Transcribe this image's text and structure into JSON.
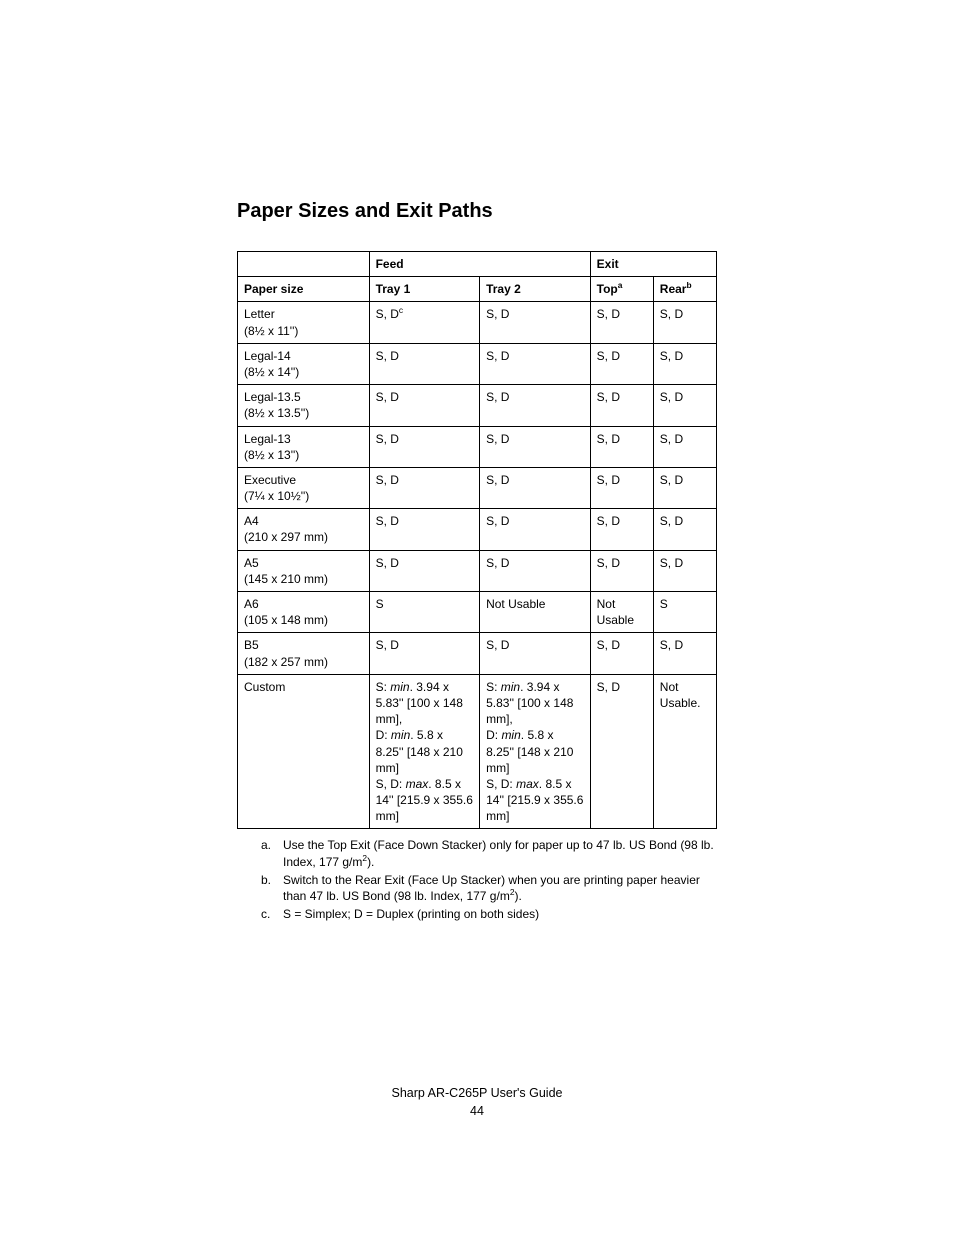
{
  "title": "Paper Sizes and Exit Paths",
  "table": {
    "header_top": {
      "empty": "",
      "feed": "Feed",
      "exit": "Exit"
    },
    "header_sub": {
      "paper_size": "Paper size",
      "tray1": "Tray 1",
      "tray2": "Tray 2",
      "top": "Top",
      "top_sup": "a",
      "rear": "Rear",
      "rear_sup": "b"
    },
    "rows": [
      {
        "size_line1": "Letter",
        "size_line2": "(8½ x 11'')",
        "tray1_pre": "S, D",
        "tray1_sup": "c",
        "tray1_post": "",
        "tray2": "S, D",
        "top": "S, D",
        "rear": "S, D"
      },
      {
        "size_line1": "Legal-14",
        "size_line2": "(8½ x 14'')",
        "tray1": "S, D",
        "tray2": "S, D",
        "top": "S, D",
        "rear": "S, D"
      },
      {
        "size_line1": "Legal-13.5",
        "size_line2": "(8½ x 13.5'')",
        "tray1": "S, D",
        "tray2": "S, D",
        "top": "S, D",
        "rear": "S, D"
      },
      {
        "size_line1": "Legal-13",
        "size_line2": "(8½ x 13'')",
        "tray1": "S, D",
        "tray2": "S, D",
        "top": "S, D",
        "rear": "S, D"
      },
      {
        "size_line1": "Executive",
        "size_line2": "(7¼ x 10½'')",
        "tray1": "S, D",
        "tray2": "S, D",
        "top": "S, D",
        "rear": "S, D"
      },
      {
        "size_line1": "A4",
        "size_line2": "(210 x 297 mm)",
        "tray1": "S, D",
        "tray2": "S, D",
        "top": "S, D",
        "rear": "S, D"
      },
      {
        "size_line1": "A5",
        "size_line2": "(145 x 210 mm)",
        "tray1": "S, D",
        "tray2": "S, D",
        "top": "S, D",
        "rear": "S, D"
      },
      {
        "size_line1": "A6",
        "size_line2": "(105 x 148 mm)",
        "tray1": "S",
        "tray2": "Not Usable",
        "top": "Not Usable",
        "rear": "S"
      },
      {
        "size_line1": "B5",
        "size_line2": "(182 x 257 mm)",
        "tray1": "S, D",
        "tray2": "S, D",
        "top": "S, D",
        "rear": "S, D"
      }
    ],
    "custom_row": {
      "size": "Custom",
      "tray1": {
        "p1a": "S: ",
        "p1i": "min",
        "p1b": ". 3.94 x 5.83'' [100 x 148 mm],",
        "p2a": "D: ",
        "p2i": "min",
        "p2b": ". 5.8 x 8.25'' [148 x 210 mm]",
        "p3a": "S, D: ",
        "p3i": "max",
        "p3b": ". 8.5 x 14'' [215.9 x 355.6 mm]"
      },
      "tray2": {
        "p1a": "S: ",
        "p1i": "min",
        "p1b": ". 3.94 x 5.83'' [100 x 148 mm],",
        "p2a": "D: ",
        "p2i": "min",
        "p2b": ". 5.8 x 8.25'' [148 x 210 mm]",
        "p3a": "S, D: ",
        "p3i": "max",
        "p3b": ". 8.5 x 14'' [215.9 x 355.6 mm]"
      },
      "top": "S, D",
      "rear": "Not Usable."
    }
  },
  "notes": {
    "a_label": "a.",
    "a_text_1": "Use the Top Exit (Face Down Stacker) only for paper up to 47 lb. US Bond (98 lb. Index, 177 g/m",
    "a_sup": "2",
    "a_text_2": ").",
    "b_label": "b.",
    "b_text_1": "Switch to the Rear Exit (Face Up Stacker) when you are printing paper heavier than 47 lb. US Bond (98 lb. Index, 177 g/m",
    "b_sup": "2",
    "b_text_2": ").",
    "c_label": "c.",
    "c_text": "S = Simplex; D = Duplex (printing on both sides)"
  },
  "footer": {
    "line1": "Sharp AR-C265P User's Guide",
    "line2": "44"
  }
}
